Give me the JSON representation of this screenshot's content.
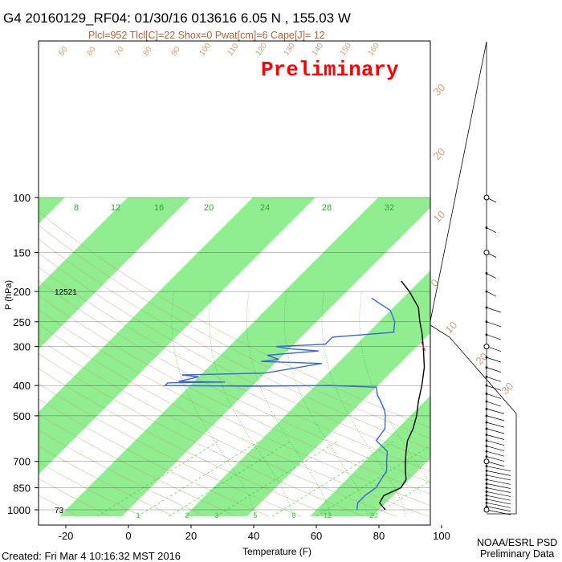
{
  "header": {
    "title": "G4 20160129_RF04: 01/30/16 013616   6.05 N , 155.03 W",
    "subtitle": "Plcl=952 Tlcl[C]=22 Shox=0 Pwat[cm]=6 Cape[J]= 12",
    "watermark": "Preliminary"
  },
  "footer": {
    "created": "Created: Fri Mar  4 10:16:32 MST 2016",
    "credit_line1": "NOAA/ESRL PSD",
    "credit_line2": "Preliminary Data"
  },
  "chart_data": {
    "type": "skew-t",
    "xlabel": "Temperature (F)",
    "ylabel": "P (hPa)",
    "x_ticks": [
      "-20",
      "0",
      "20",
      "40",
      "60",
      "80",
      "100"
    ],
    "x_tick_values": [
      -20,
      0,
      20,
      40,
      60,
      80,
      100
    ],
    "y_ticks": [
      "100",
      "150",
      "200",
      "250",
      "300",
      "400",
      "500",
      "700",
      "850",
      "1000"
    ],
    "y_tick_values": [
      100,
      150,
      200,
      250,
      300,
      400,
      500,
      700,
      850,
      1000
    ],
    "xlim": [
      -28,
      125
    ],
    "ylim": [
      1050,
      100
    ],
    "y_scale": "log",
    "height_labels": [
      {
        "p": 200,
        "text": "12521"
      },
      {
        "p": 1000,
        "text": "73"
      }
    ],
    "mixing_ratio_labels_top": [
      "8",
      "12",
      "16",
      "20",
      "24",
      "28",
      "32"
    ],
    "mixing_ratio_labels_bottom": [
      "1",
      "2",
      "3",
      "5",
      "8",
      "12",
      "20"
    ],
    "isotherm_labels_right": [
      "30",
      "20",
      "10",
      "0",
      "10",
      "20",
      "30"
    ],
    "theta_labels": [
      "50",
      "60",
      "70",
      "80",
      "90",
      "100",
      "110",
      "120",
      "130",
      "140",
      "150",
      "160"
    ],
    "series": [
      {
        "name": "",
        "kind": "temperature",
        "color": "#000000",
        "points": [
          [
            1000,
            82
          ],
          [
            950,
            78
          ],
          [
            900,
            77
          ],
          [
            850,
            80
          ],
          [
            800,
            79
          ],
          [
            750,
            76
          ],
          [
            700,
            73
          ],
          [
            650,
            70
          ],
          [
            600,
            67
          ],
          [
            550,
            65
          ],
          [
            500,
            62
          ],
          [
            450,
            58
          ],
          [
            400,
            54
          ],
          [
            350,
            49
          ],
          [
            300,
            42
          ],
          [
            270,
            37
          ],
          [
            250,
            33
          ],
          [
            225,
            28
          ],
          [
            200,
            20
          ],
          [
            185,
            14
          ]
        ]
      },
      {
        "name": "",
        "kind": "dewpoint",
        "color": "#3a66d8",
        "points": [
          [
            1000,
            73
          ],
          [
            950,
            71
          ],
          [
            900,
            71
          ],
          [
            850,
            72
          ],
          [
            800,
            71
          ],
          [
            750,
            70
          ],
          [
            700,
            67
          ],
          [
            650,
            64
          ],
          [
            600,
            57
          ],
          [
            550,
            56
          ],
          [
            500,
            52
          ],
          [
            480,
            50
          ],
          [
            450,
            46
          ],
          [
            430,
            43
          ],
          [
            405,
            40
          ],
          [
            400,
            25
          ],
          [
            402,
            0
          ],
          [
            400,
            -28
          ],
          [
            392,
            -28
          ],
          [
            390,
            -10
          ],
          [
            388,
            -25
          ],
          [
            375,
            -20
          ],
          [
            370,
            -26
          ],
          [
            365,
            0
          ],
          [
            340,
            15
          ],
          [
            335,
            -5
          ],
          [
            330,
            0
          ],
          [
            320,
            -5
          ],
          [
            310,
            10
          ],
          [
            305,
            0
          ],
          [
            300,
            -5
          ],
          [
            295,
            10
          ],
          [
            280,
            10
          ],
          [
            270,
            28
          ],
          [
            250,
            25
          ],
          [
            230,
            20
          ],
          [
            210,
            10
          ]
        ]
      },
      {
        "name": "",
        "kind": "parcel-segment",
        "color": "#e02020",
        "points": [
          [
            290,
            40
          ],
          [
            300,
            42
          ],
          [
            310,
            44
          ]
        ]
      }
    ],
    "wind_barbs_shown": true,
    "colors": {
      "band_green": "#90ee90",
      "isotherm": "#c8a07a",
      "mixing_ratio": "#33cc33",
      "watermark": "#ff0000"
    }
  }
}
